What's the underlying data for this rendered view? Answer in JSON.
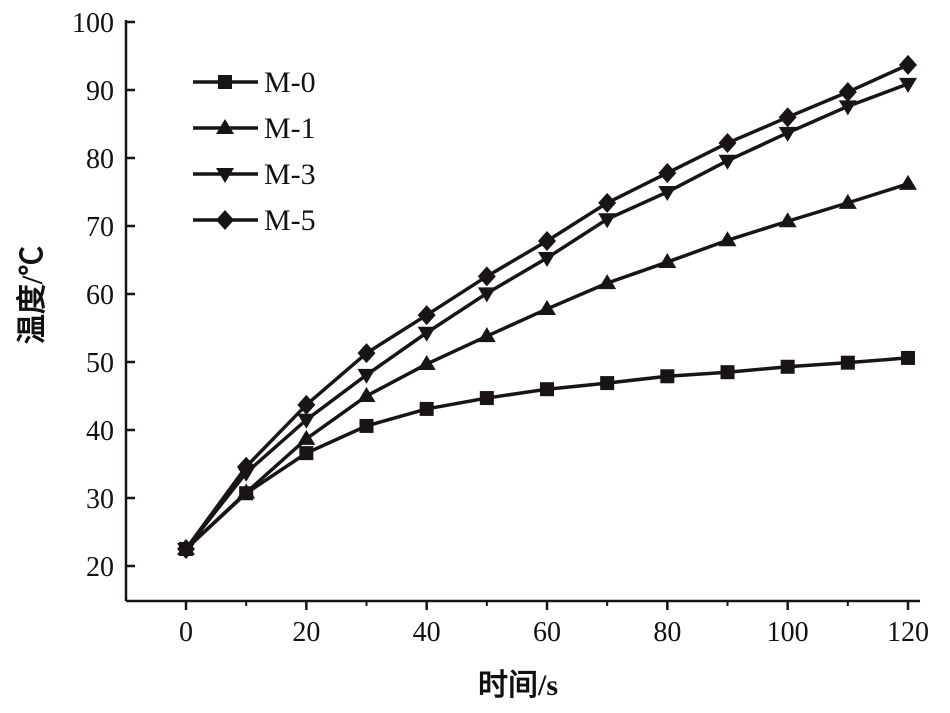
{
  "chart_data": {
    "type": "line",
    "title": "",
    "xlabel": "时间/s",
    "ylabel": "温度/℃",
    "xlim": [
      -10,
      125
    ],
    "ylim": [
      15,
      100
    ],
    "xticks": [
      0,
      20,
      40,
      60,
      80,
      100,
      120
    ],
    "yticks": [
      20,
      30,
      40,
      50,
      60,
      70,
      80,
      90,
      100
    ],
    "x": [
      0,
      10,
      20,
      30,
      40,
      50,
      60,
      70,
      80,
      90,
      100,
      110,
      120
    ],
    "legend_position": "top-left",
    "grid": false,
    "color": "#1a1414",
    "series": [
      {
        "name": "M-0",
        "marker": "square",
        "values": [
          22.5,
          30.7,
          36.6,
          40.6,
          43.1,
          44.7,
          46.0,
          46.9,
          47.9,
          48.5,
          49.3,
          49.9,
          50.6
        ]
      },
      {
        "name": "M-1",
        "marker": "triangle-up",
        "values": [
          22.5,
          30.8,
          38.7,
          45.0,
          49.7,
          53.8,
          57.8,
          61.6,
          64.7,
          67.9,
          70.7,
          73.4,
          76.2
        ]
      },
      {
        "name": "M-3",
        "marker": "triangle-down",
        "values": [
          22.5,
          33.7,
          41.5,
          48.1,
          54.3,
          60.1,
          65.3,
          71.0,
          75.0,
          79.6,
          83.7,
          87.6,
          90.9
        ]
      },
      {
        "name": "M-5",
        "marker": "diamond",
        "values": [
          22.5,
          34.6,
          43.7,
          51.3,
          56.9,
          62.6,
          67.8,
          73.4,
          77.8,
          82.2,
          86.0,
          89.7,
          93.7
        ]
      }
    ]
  }
}
